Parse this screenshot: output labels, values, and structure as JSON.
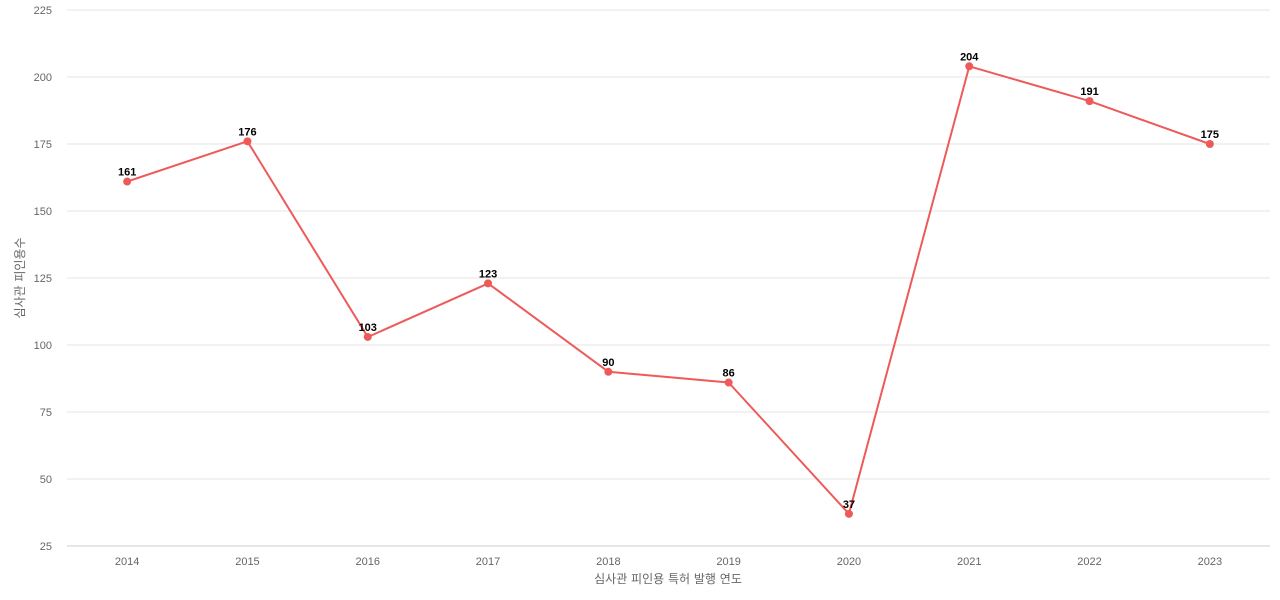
{
  "chart_data": {
    "type": "line",
    "title": "",
    "xlabel": "심사관 피인용 특허 발행 연도",
    "ylabel": "심사관 피인용수",
    "categories": [
      "2014",
      "2015",
      "2016",
      "2017",
      "2018",
      "2019",
      "2020",
      "2021",
      "2022",
      "2023"
    ],
    "series": [
      {
        "values": [
          161,
          176,
          103,
          123,
          90,
          86,
          37,
          204,
          191,
          175
        ],
        "color": "#ee5a5a"
      }
    ],
    "ylim": [
      25,
      225
    ],
    "yticks": [
      25,
      50,
      75,
      100,
      125,
      150,
      175,
      200,
      225
    ],
    "grid": true,
    "data_labels": true,
    "legend": "none"
  }
}
